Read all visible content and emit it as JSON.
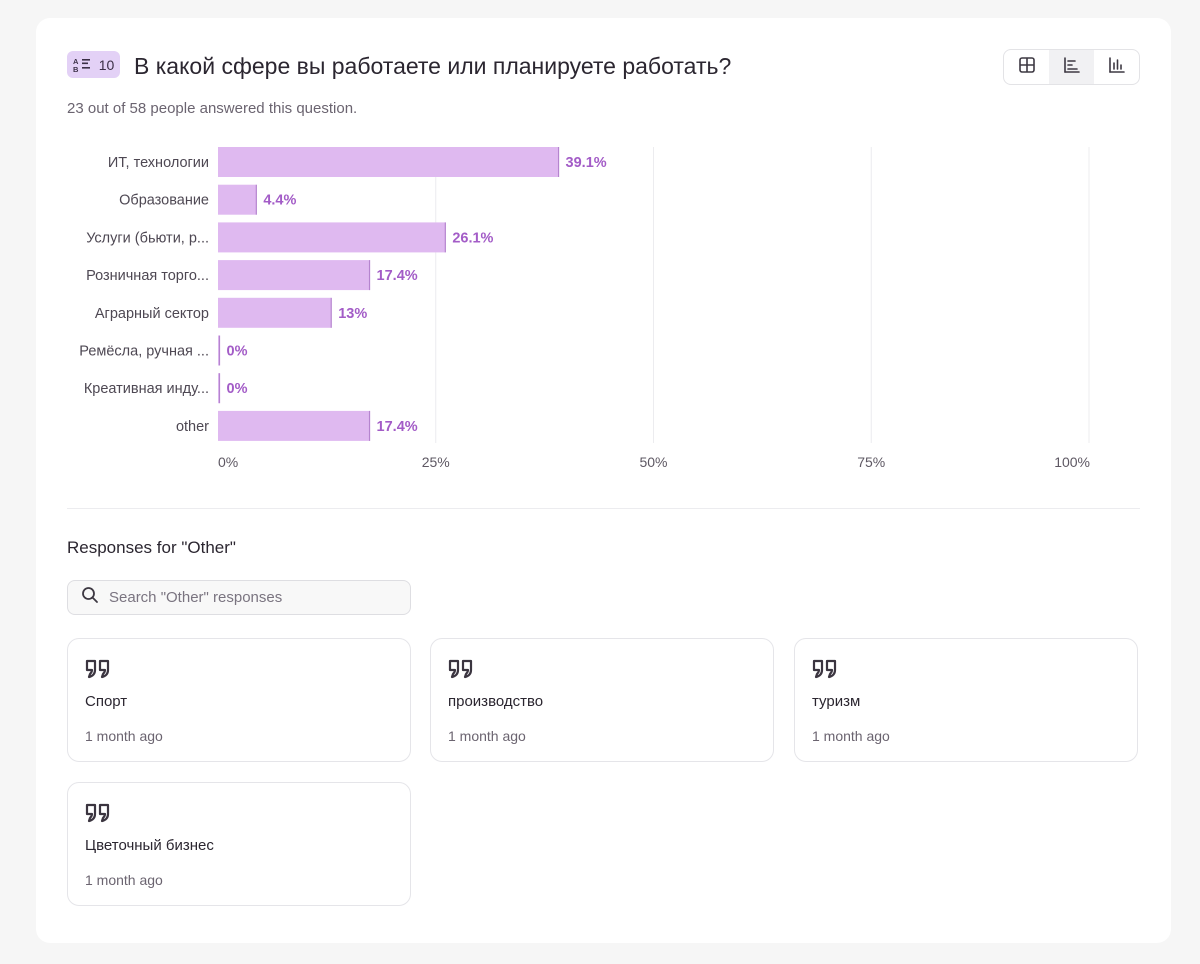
{
  "question": {
    "number": "10",
    "type_icon": "multiple-choice-icon",
    "title": "В какой сфере вы работаете или планируете работать?",
    "subtitle": "23 out of 58 people answered this question."
  },
  "view_toggle": {
    "items": [
      {
        "icon": "table-icon",
        "active": false
      },
      {
        "icon": "horizontal-bar-chart-icon",
        "active": true
      },
      {
        "icon": "vertical-bar-chart-icon",
        "active": false
      }
    ]
  },
  "chart_data": {
    "type": "bar",
    "orientation": "horizontal",
    "categories": [
      "ИТ, технологии",
      "Образование",
      "Услуги (бьюти, р...",
      "Розничная торго...",
      "Аграрный сектор",
      "Ремёсла, ручная ...",
      "Креативная инду...",
      "other"
    ],
    "values": [
      39.1,
      4.4,
      26.1,
      17.4,
      13,
      0,
      0,
      17.4
    ],
    "value_labels": [
      "39.1%",
      "4.4%",
      "26.1%",
      "17.4%",
      "13%",
      "0%",
      "0%",
      "17.4%"
    ],
    "xlim": [
      0,
      100
    ],
    "xticks": [
      0,
      25,
      50,
      75,
      100
    ],
    "xtick_labels": [
      "0%",
      "25%",
      "50%",
      "75%",
      "100%"
    ],
    "grid": true,
    "colors": {
      "bar": "#dfb9f0",
      "bar_edge": "#b584cf",
      "label": "#a35cc7",
      "grid": "#ececef",
      "category": "#4e4853",
      "tick": "#5e5863"
    }
  },
  "other_responses": {
    "title": "Responses for \"Other\"",
    "search_placeholder": "Search \"Other\" responses",
    "items": [
      {
        "text": "Спорт",
        "time": "1 month ago"
      },
      {
        "text": "производство",
        "time": "1 month ago"
      },
      {
        "text": "туризм",
        "time": "1 month ago"
      },
      {
        "text": "Цветочный бизнес",
        "time": "1 month ago"
      }
    ]
  }
}
